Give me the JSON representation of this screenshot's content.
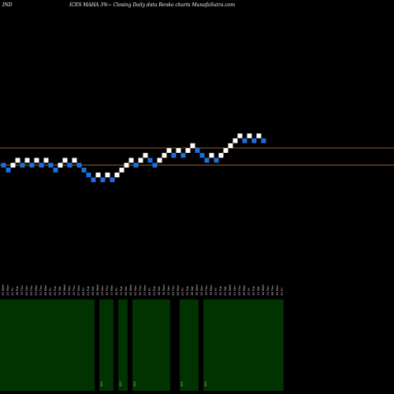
{
  "header": {
    "left_label": "IND",
    "title": "ICES MAHA 3%~ Closing Daily data  Renko  charts MunafaSutra.com"
  },
  "chart_data": {
    "type": "renko",
    "title": "ICES MAHA 3%~ Closing Daily data  Renko  charts MunafaSutra.com",
    "colors": {
      "up": "#ffffff",
      "down": "#1c6fe0",
      "level_line": "#c87a2a",
      "volume": "#003300",
      "background": "#000000"
    },
    "bricks": [
      {
        "level": 2,
        "dir": "down"
      },
      {
        "level": 1,
        "dir": "down"
      },
      {
        "level": 2,
        "dir": "up"
      },
      {
        "level": 3,
        "dir": "up"
      },
      {
        "level": 2,
        "dir": "down"
      },
      {
        "level": 3,
        "dir": "up"
      },
      {
        "level": 2,
        "dir": "down"
      },
      {
        "level": 3,
        "dir": "up"
      },
      {
        "level": 2,
        "dir": "down"
      },
      {
        "level": 3,
        "dir": "up"
      },
      {
        "level": 2,
        "dir": "down"
      },
      {
        "level": 1,
        "dir": "down"
      },
      {
        "level": 2,
        "dir": "up"
      },
      {
        "level": 3,
        "dir": "up"
      },
      {
        "level": 2,
        "dir": "down"
      },
      {
        "level": 3,
        "dir": "up"
      },
      {
        "level": 2,
        "dir": "down"
      },
      {
        "level": 1,
        "dir": "down"
      },
      {
        "level": 0,
        "dir": "down"
      },
      {
        "level": -1,
        "dir": "down"
      },
      {
        "level": 0,
        "dir": "up"
      },
      {
        "level": -1,
        "dir": "down"
      },
      {
        "level": 0,
        "dir": "up"
      },
      {
        "level": -1,
        "dir": "down"
      },
      {
        "level": 0,
        "dir": "up"
      },
      {
        "level": 1,
        "dir": "up"
      },
      {
        "level": 2,
        "dir": "up"
      },
      {
        "level": 3,
        "dir": "up"
      },
      {
        "level": 2,
        "dir": "down"
      },
      {
        "level": 3,
        "dir": "up"
      },
      {
        "level": 4,
        "dir": "up"
      },
      {
        "level": 3,
        "dir": "down"
      },
      {
        "level": 2,
        "dir": "down"
      },
      {
        "level": 3,
        "dir": "up"
      },
      {
        "level": 4,
        "dir": "up"
      },
      {
        "level": 5,
        "dir": "up"
      },
      {
        "level": 4,
        "dir": "down"
      },
      {
        "level": 5,
        "dir": "up"
      },
      {
        "level": 4,
        "dir": "down"
      },
      {
        "level": 5,
        "dir": "up"
      },
      {
        "level": 6,
        "dir": "up"
      },
      {
        "level": 5,
        "dir": "down"
      },
      {
        "level": 4,
        "dir": "down"
      },
      {
        "level": 3,
        "dir": "down"
      },
      {
        "level": 4,
        "dir": "up"
      },
      {
        "level": 3,
        "dir": "down"
      },
      {
        "level": 4,
        "dir": "up"
      },
      {
        "level": 5,
        "dir": "up"
      },
      {
        "level": 6,
        "dir": "up"
      },
      {
        "level": 7,
        "dir": "up"
      },
      {
        "level": 8,
        "dir": "up"
      },
      {
        "level": 7,
        "dir": "down"
      },
      {
        "level": 8,
        "dir": "up"
      },
      {
        "level": 7,
        "dir": "down"
      },
      {
        "level": 8,
        "dir": "up"
      },
      {
        "level": 7,
        "dir": "down"
      }
    ],
    "reference_lines": [
      {
        "level": 5.5
      },
      {
        "level": 2.0
      }
    ],
    "x_tick_labels": [
      "00 Wed",
      "23 Mon",
      "21 Fri",
      "18 Tue",
      "13 Thu",
      "09 Sun",
      "06 Thu",
      "03 Mon",
      "31 Thu",
      "28 Mon",
      "25 Fri",
      "22 Tue",
      "19 Sat",
      "16 Wed",
      "13 Sun",
      "10 Thu",
      "07 Mon",
      "04 Fri",
      "01 Tue",
      "29 Sat",
      "26 Wed",
      "23 Sun",
      "20 Thu",
      "17 Mon",
      "14 Fri",
      "11 Tue",
      "08 Sat",
      "05 Wed",
      "02 Sun",
      "30 Thu",
      "27 Mon",
      "24 Fri",
      "21 Tue",
      "18 Sat",
      "15 Wed",
      "12 Sun",
      "09 Thu",
      "06 Mon",
      "03 Fri",
      "31 Tue",
      "28 Sat",
      "25 Wed",
      "22 Sun",
      "19 Thu",
      "16 Mon",
      "13 Fri",
      "10 Tue",
      "07 Sat",
      "04 Wed",
      "01 Sun",
      "29 Thu",
      "26 Mon",
      "23 Fri",
      "20 Tue",
      "17 Sat",
      "14 Wed",
      "11 Sun",
      "08 Thu",
      "05 Mon",
      "02 Fri"
    ],
    "volume": [
      {
        "start": 0,
        "end": 20,
        "label": ""
      },
      {
        "start": 21,
        "end": 24,
        "label": "0.0"
      },
      {
        "start": 25,
        "end": 27,
        "label": "0.0"
      },
      {
        "start": 28,
        "end": 36,
        "label": "0.0"
      },
      {
        "start": 38,
        "end": 42,
        "label": "0.0"
      },
      {
        "start": 43,
        "end": 60,
        "label": "0.0"
      }
    ]
  }
}
